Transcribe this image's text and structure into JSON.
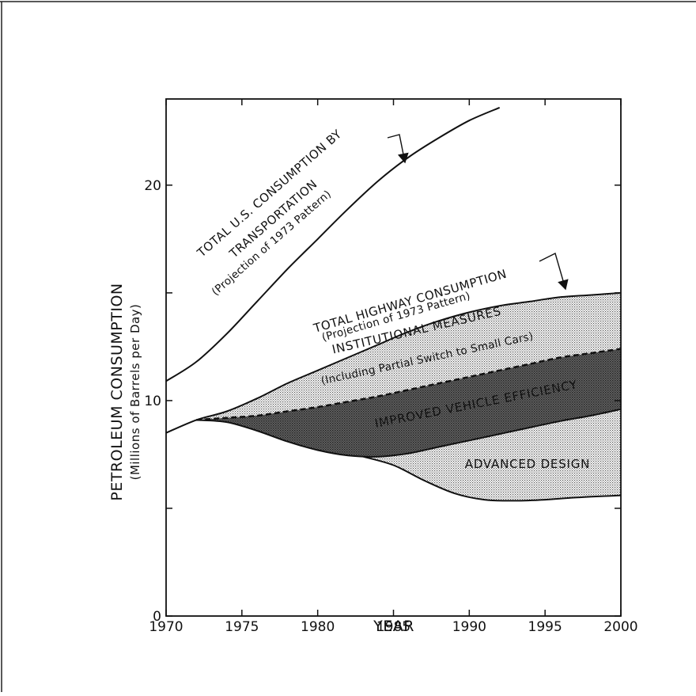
{
  "chart_data": {
    "type": "area",
    "xlabel": "YEAR",
    "ylabel": "PETROLEUM CONSUMPTION",
    "ylabel_sub": "(Millions of Barrels per Day)",
    "xlim": [
      1970,
      2000
    ],
    "ylim": [
      0,
      24
    ],
    "x_ticks": [
      1970,
      1975,
      1980,
      1985,
      1990,
      1995,
      2000
    ],
    "y_ticks_labeled": [
      0,
      10,
      20
    ],
    "y_ticks_minor": [
      5,
      15
    ],
    "grid": false,
    "series": [
      {
        "name": "TOTAL U.S. CONSUMPTION BY TRANSPORTATION (Projection of 1973 Pattern)",
        "x": [
          1970,
          1972,
          1974,
          1976,
          1978,
          1980,
          1982,
          1984,
          1986,
          1988,
          1990,
          1992
        ],
        "values": [
          10.9,
          11.8,
          13.1,
          14.6,
          16.1,
          17.5,
          18.9,
          20.2,
          21.3,
          22.2,
          23.0,
          23.6
        ]
      },
      {
        "name": "TOTAL HIGHWAY CONSUMPTION (Projection of 1973 Pattern)",
        "x": [
          1970,
          1972,
          1974,
          1976,
          1978,
          1980,
          1982,
          1984,
          1986,
          1988,
          1990,
          1992,
          1994,
          1996,
          1998,
          2000
        ],
        "values": [
          8.5,
          9.1,
          9.5,
          10.1,
          10.8,
          11.4,
          12.0,
          12.6,
          13.2,
          13.7,
          14.1,
          14.4,
          14.6,
          14.8,
          14.9,
          15.0
        ]
      },
      {
        "name": "INSTITUTIONAL MEASURES (Including Partial Switch to Small Cars)",
        "x": [
          1972,
          1974,
          1976,
          1978,
          1980,
          1982,
          1984,
          1986,
          1988,
          1990,
          1992,
          1994,
          1996,
          1998,
          2000
        ],
        "values": [
          9.1,
          9.2,
          9.3,
          9.5,
          9.7,
          9.95,
          10.2,
          10.5,
          10.8,
          11.1,
          11.4,
          11.7,
          12.0,
          12.2,
          12.4
        ]
      },
      {
        "name": "IMPROVED VEHICLE EFFICIENCY",
        "x": [
          1972,
          1974,
          1976,
          1978,
          1980,
          1982,
          1984,
          1986,
          1988,
          1990,
          1992,
          1994,
          1996,
          1998,
          2000
        ],
        "values": [
          9.1,
          9.0,
          8.6,
          8.1,
          7.7,
          7.45,
          7.4,
          7.55,
          7.85,
          8.15,
          8.45,
          8.75,
          9.05,
          9.3,
          9.6
        ]
      },
      {
        "name": "ADVANCED DESIGN",
        "x": [
          1983,
          1985,
          1987,
          1989,
          1991,
          1993,
          1995,
          1997,
          2000
        ],
        "values": [
          7.4,
          7.0,
          6.3,
          5.7,
          5.4,
          5.35,
          5.4,
          5.5,
          5.6
        ]
      }
    ],
    "annotations": {
      "transport_line1": "TOTAL U.S. CONSUMPTION BY",
      "transport_line2": "TRANSPORTATION",
      "transport_line3": "(Projection of 1973 Pattern)",
      "highway_line1": "TOTAL HIGHWAY CONSUMPTION",
      "highway_line2": "(Projection of 1973 Pattern)",
      "inst_line1": "INSTITUTIONAL MEASURES",
      "inst_line2": "(Including Partial Switch to Small Cars)",
      "efficiency": "IMPROVED VEHICLE EFFICIENCY",
      "advanced": "ADVANCED DESIGN"
    }
  }
}
